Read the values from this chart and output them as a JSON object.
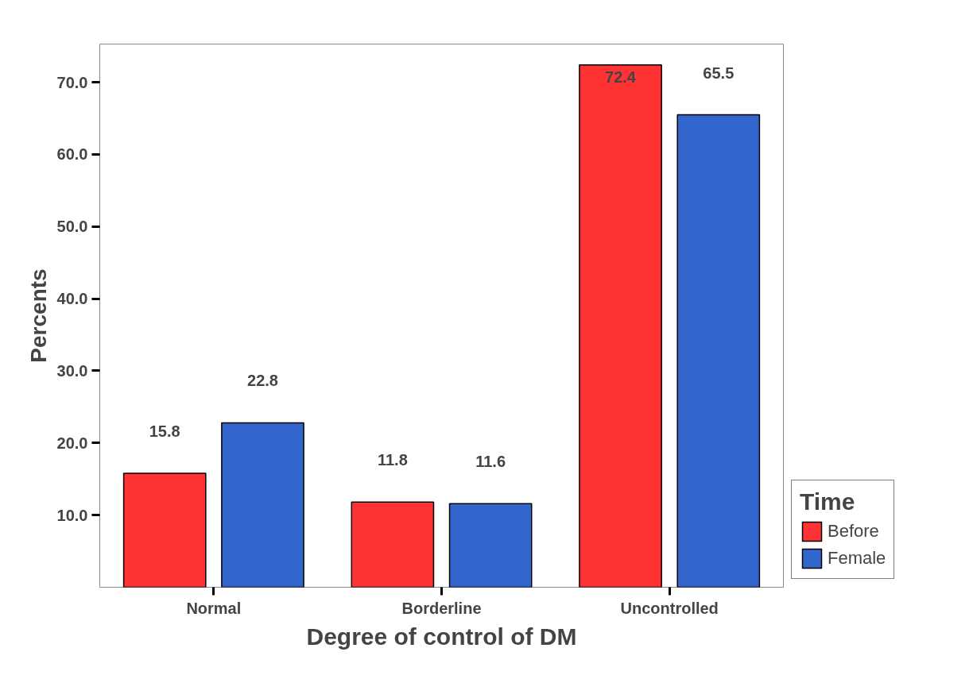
{
  "chart_data": {
    "type": "bar",
    "xlabel": "Degree of control of DM",
    "ylabel": "Percents",
    "legend_title": "Time",
    "categories": [
      "Normal",
      "Borderline",
      "Uncontrolled"
    ],
    "series": [
      {
        "name": "Before",
        "color": "#ff3333",
        "values": [
          15.8,
          11.8,
          72.4
        ]
      },
      {
        "name": "Female",
        "color": "#3366cc",
        "values": [
          22.8,
          11.6,
          65.5
        ]
      }
    ],
    "ylim": [
      0,
      75.3
    ],
    "yticks": [
      {
        "value": 10,
        "label": "10.0"
      },
      {
        "value": 20,
        "label": "20.0"
      },
      {
        "value": 30,
        "label": "30.0"
      },
      {
        "value": 40,
        "label": "40.0"
      },
      {
        "value": 50,
        "label": "50.0"
      },
      {
        "value": 60,
        "label": "60.0"
      },
      {
        "value": 70,
        "label": "70.0"
      }
    ],
    "grid": false,
    "legend": "bottom right",
    "data_labels": true
  }
}
